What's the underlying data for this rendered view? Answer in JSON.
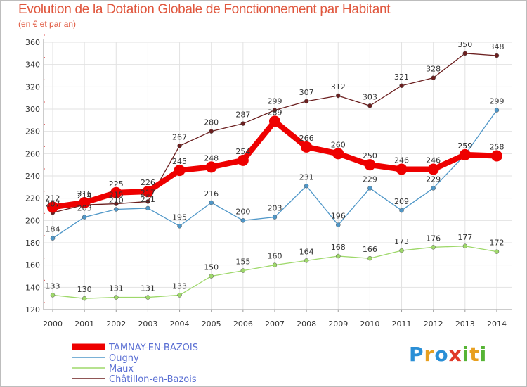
{
  "title": "Evolution de la Dotation Globale de Fonctionnement par Habitant",
  "subtitle": "(en € et par an)",
  "logo": {
    "text": "Proxiti",
    "letters": [
      "P",
      "r",
      "o",
      "x",
      "i",
      "t",
      "i"
    ],
    "colors": [
      "#2a8fd6",
      "#e8a020",
      "#2a8fd6",
      "#e03a2a",
      "#56b435",
      "#e8a020",
      "#56b435"
    ]
  },
  "chart_data": {
    "type": "line",
    "x": [
      "2000",
      "2001",
      "2002",
      "2003",
      "2004",
      "2005",
      "2006",
      "2007",
      "2008",
      "2009",
      "2010",
      "2011",
      "2012",
      "2013",
      "2014"
    ],
    "ylim": [
      120,
      360
    ],
    "yticks": [
      120,
      140,
      160,
      180,
      200,
      220,
      240,
      260,
      280,
      300,
      320,
      340,
      360
    ],
    "grid": true,
    "series": [
      {
        "name": "TAMNAY-EN-BAZOIS",
        "color": "#ee0000",
        "width": 8,
        "dot": 8,
        "values": [
          212,
          216,
          225,
          226,
          245,
          248,
          254,
          289,
          266,
          260,
          250,
          246,
          246,
          259,
          258
        ]
      },
      {
        "name": "Ougny",
        "color": "#4f97c8",
        "width": 1.3,
        "dot": 3,
        "values": [
          184,
          203,
          210,
          211,
          195,
          216,
          200,
          203,
          231,
          196,
          229,
          209,
          229,
          259,
          299
        ]
      },
      {
        "name": "Maux",
        "color": "#9ed86a",
        "width": 1.3,
        "dot": 3,
        "values": [
          133,
          130,
          131,
          131,
          133,
          150,
          155,
          160,
          164,
          168,
          166,
          173,
          176,
          177,
          172
        ]
      },
      {
        "name": "Châtillon-en-Bazois",
        "color": "#6b1f1f",
        "width": 1.3,
        "dot": 3,
        "values": [
          207,
          214,
          215,
          217,
          267,
          280,
          287,
          299,
          307,
          312,
          303,
          321,
          328,
          350,
          348
        ]
      }
    ]
  }
}
